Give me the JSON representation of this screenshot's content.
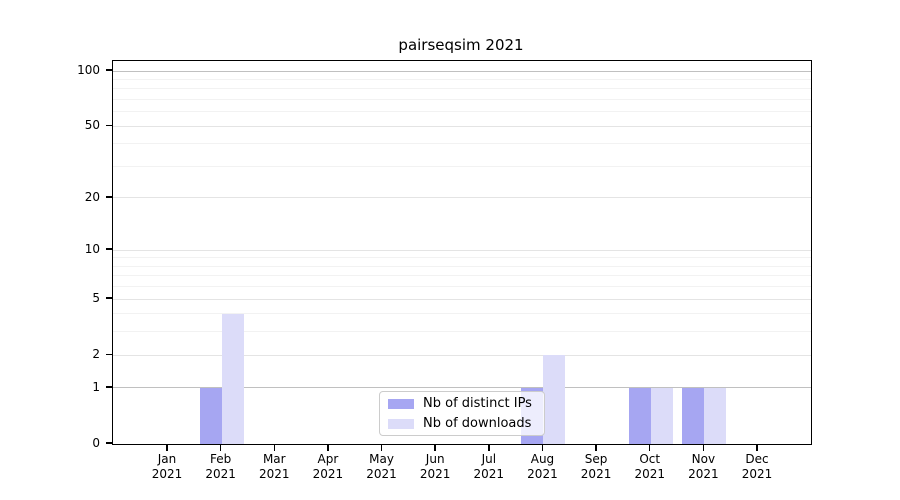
{
  "chart_data": {
    "type": "bar",
    "title": "pairseqsim 2021",
    "categories": [
      {
        "month": "Jan",
        "year": "2021"
      },
      {
        "month": "Feb",
        "year": "2021"
      },
      {
        "month": "Mar",
        "year": "2021"
      },
      {
        "month": "Apr",
        "year": "2021"
      },
      {
        "month": "May",
        "year": "2021"
      },
      {
        "month": "Jun",
        "year": "2021"
      },
      {
        "month": "Jul",
        "year": "2021"
      },
      {
        "month": "Aug",
        "year": "2021"
      },
      {
        "month": "Sep",
        "year": "2021"
      },
      {
        "month": "Oct",
        "year": "2021"
      },
      {
        "month": "Nov",
        "year": "2021"
      },
      {
        "month": "Dec",
        "year": "2021"
      }
    ],
    "series": [
      {
        "name": "Nb of distinct IPs",
        "color": "#a6a6f2",
        "values": [
          0,
          1,
          0,
          0,
          0,
          0,
          0,
          1,
          0,
          1,
          1,
          0
        ]
      },
      {
        "name": "Nb of downloads",
        "color": "#dcdcf9",
        "values": [
          0,
          4,
          0,
          0,
          0,
          0,
          0,
          2,
          0,
          1,
          1,
          0
        ]
      }
    ],
    "xlabel": "",
    "ylabel": "",
    "y_scale": "log1p",
    "ylim": [
      0,
      113
    ],
    "y_ticks": [
      {
        "label": "0",
        "value": 0
      },
      {
        "label": "1",
        "value": 1
      },
      {
        "label": "2",
        "value": 2
      },
      {
        "label": "5",
        "value": 5
      },
      {
        "label": "10",
        "value": 10
      },
      {
        "label": "20",
        "value": 20
      },
      {
        "label": "50",
        "value": 50
      },
      {
        "label": "100",
        "value": 100
      }
    ],
    "grid": {
      "strong_lines": [
        1,
        100
      ],
      "mid_lines": [
        2,
        5,
        10,
        20,
        50
      ],
      "minor_lines": [
        3,
        4,
        6,
        7,
        8,
        9,
        30,
        40,
        60,
        70,
        80,
        90
      ]
    },
    "legend": {
      "position": "lower-center",
      "entries": [
        "Nb of distinct IPs",
        "Nb of downloads"
      ]
    }
  }
}
